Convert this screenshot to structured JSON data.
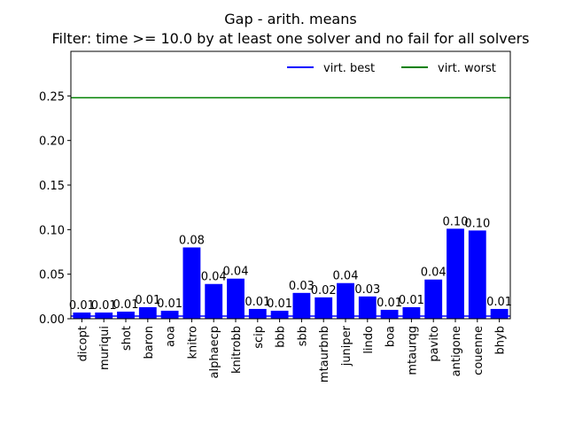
{
  "chart_data": {
    "type": "bar",
    "title": "Gap - arith. means",
    "subtitle": "Filter: time >= 10.0 by at least one solver and no fail for all solvers",
    "xlabel": "",
    "ylabel": "",
    "ylim": [
      0,
      0.3
    ],
    "yticks": [
      "0.00",
      "0.05",
      "0.10",
      "0.15",
      "0.20",
      "0.25"
    ],
    "categories": [
      "dicopt",
      "muriqui",
      "shot",
      "baron",
      "aoa",
      "knitro",
      "alphaecp",
      "knitrobb",
      "scip",
      "bbb",
      "sbb",
      "mtaurbnb",
      "juniper",
      "lindo",
      "boa",
      "mtaurqg",
      "pavito",
      "antigone",
      "couenne",
      "bhyb"
    ],
    "values": [
      0.007,
      0.007,
      0.008,
      0.013,
      0.009,
      0.08,
      0.039,
      0.045,
      0.011,
      0.009,
      0.029,
      0.024,
      0.04,
      0.025,
      0.01,
      0.013,
      0.044,
      0.101,
      0.099,
      0.011
    ],
    "data_labels": [
      "0.01",
      "0.01",
      "0.01",
      "0.01",
      "0.01",
      "0.08",
      "0.04",
      "0.04",
      "0.01",
      "0.01",
      "0.03",
      "0.02",
      "0.04",
      "0.03",
      "0.01",
      "0.01",
      "0.04",
      "0.10",
      "0.10",
      "0.01"
    ],
    "bar_color": "#0000ff",
    "reference_lines": [
      {
        "name": "virt. best",
        "value": 0.003,
        "color": "#0000ff"
      },
      {
        "name": "virt. worst",
        "value": 0.248,
        "color": "#008000"
      }
    ],
    "legend_placement": "top-right",
    "grid": false
  }
}
